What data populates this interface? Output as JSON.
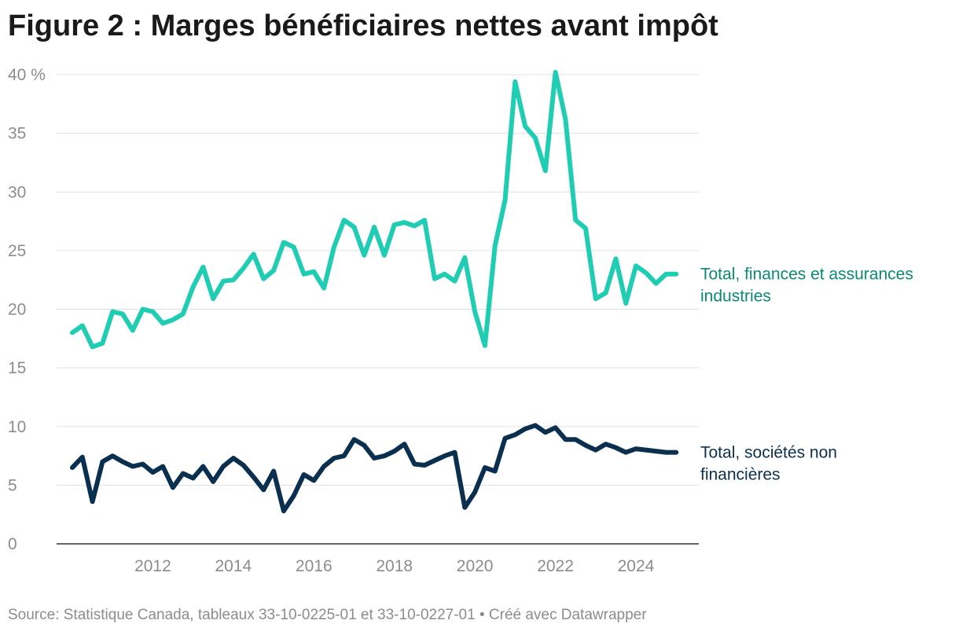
{
  "title": "Figure 2 : Marges bénéficiaires nettes avant impôt",
  "source": "Source: Statistique Canada, tableaux 33-10-0225-01 et 33-10-0227-01 • Créé avec Datawrapper",
  "chart_data": {
    "type": "line",
    "title": "Figure 2 : Marges bénéficiaires nettes avant impôt",
    "xlabel": "",
    "ylabel": "",
    "xlim": [
      2010.0,
      2025.25
    ],
    "ylim": [
      0,
      40
    ],
    "y_ticks": [
      0,
      5,
      10,
      15,
      20,
      25,
      30,
      35,
      40
    ],
    "y_tick_labels": [
      "0",
      "5",
      "10",
      "15",
      "20",
      "25",
      "30",
      "35",
      "40 %"
    ],
    "x_ticks": [
      2012,
      2014,
      2016,
      2018,
      2020,
      2022,
      2024
    ],
    "x_tick_labels": [
      "2012",
      "2014",
      "2016",
      "2018",
      "2020",
      "2022",
      "2024"
    ],
    "grid": true,
    "legend": "direct labels at right end of lines",
    "x": [
      2010.0,
      2010.25,
      2010.5,
      2010.75,
      2011.0,
      2011.25,
      2011.5,
      2011.75,
      2012.0,
      2012.25,
      2012.5,
      2012.75,
      2013.0,
      2013.25,
      2013.5,
      2013.75,
      2014.0,
      2014.25,
      2014.5,
      2014.75,
      2015.0,
      2015.25,
      2015.5,
      2015.75,
      2016.0,
      2016.25,
      2016.5,
      2016.75,
      2017.0,
      2017.25,
      2017.5,
      2017.75,
      2018.0,
      2018.25,
      2018.5,
      2018.75,
      2019.0,
      2019.25,
      2019.5,
      2019.75,
      2020.0,
      2020.25,
      2020.5,
      2020.75,
      2021.0,
      2021.25,
      2021.5,
      2021.75,
      2022.0,
      2022.25,
      2022.5,
      2022.75,
      2023.0,
      2023.25,
      2023.5,
      2023.75,
      2024.0,
      2024.25,
      2024.5,
      2024.75,
      2025.0
    ],
    "series": [
      {
        "name": "Total, finances et assurances industries",
        "label_lines": [
          "Total, finances et assurances",
          "industries"
        ],
        "color": "#1fcdb3",
        "label_color": "#0a8a74",
        "values": [
          18.0,
          18.6,
          16.8,
          17.1,
          19.8,
          19.6,
          18.2,
          20.0,
          19.8,
          18.8,
          19.1,
          19.6,
          21.9,
          23.6,
          20.9,
          22.4,
          22.5,
          23.5,
          24.7,
          22.6,
          23.3,
          25.7,
          25.3,
          23.0,
          23.2,
          21.8,
          25.3,
          27.6,
          27.0,
          24.6,
          27.0,
          24.6,
          27.2,
          27.4,
          27.1,
          27.6,
          22.6,
          23.0,
          22.4,
          24.4,
          19.8,
          16.9,
          25.4,
          29.3,
          39.4,
          35.6,
          34.6,
          31.8,
          40.2,
          36.2,
          27.6,
          26.9,
          20.9,
          21.4,
          24.3,
          20.5,
          23.7,
          23.1,
          22.2,
          23.0,
          23.0
        ]
      },
      {
        "name": "Total, sociétés non financières",
        "label_lines": [
          "Total, sociétés non",
          "financières"
        ],
        "color": "#0b2f4e",
        "label_color": "#0b2f4e",
        "values": [
          6.5,
          7.4,
          3.6,
          7.0,
          7.5,
          7.0,
          6.6,
          6.8,
          6.1,
          6.6,
          4.8,
          6.0,
          5.6,
          6.6,
          5.3,
          6.6,
          7.3,
          6.7,
          5.7,
          4.6,
          6.2,
          2.8,
          4.1,
          5.9,
          5.4,
          6.6,
          7.3,
          7.5,
          8.9,
          8.4,
          7.3,
          7.5,
          7.9,
          8.5,
          6.8,
          6.7,
          7.1,
          7.5,
          7.8,
          3.1,
          4.4,
          6.5,
          6.2,
          9.0,
          9.3,
          9.8,
          10.1,
          9.5,
          9.9,
          8.9,
          8.9,
          8.4,
          8.0,
          8.5,
          8.2,
          7.8,
          8.1,
          8.0,
          7.9,
          7.8,
          7.8
        ]
      }
    ]
  }
}
